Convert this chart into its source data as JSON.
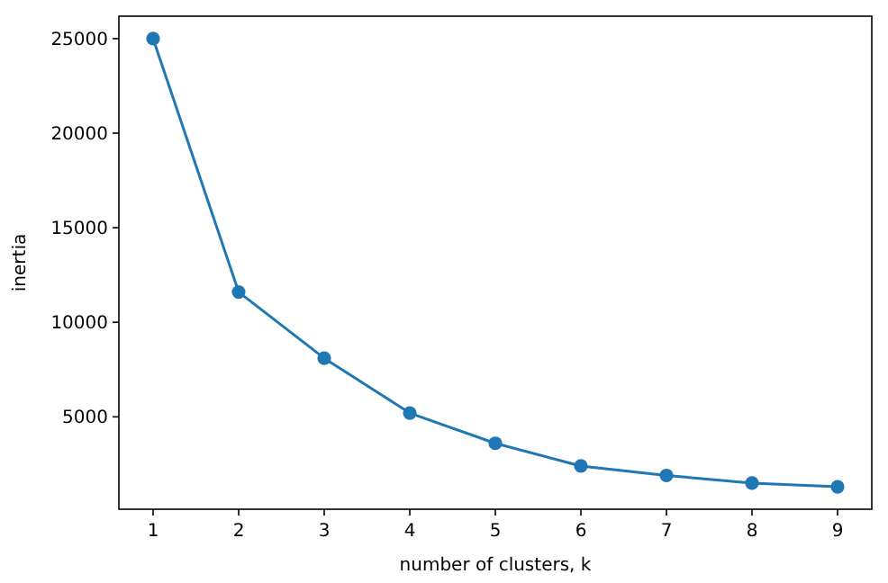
{
  "chart_data": {
    "type": "line",
    "xlabel": "number of clusters, k",
    "ylabel": "inertia",
    "x": [
      1,
      2,
      3,
      4,
      5,
      6,
      7,
      8,
      9
    ],
    "series": [
      {
        "color": "#1f77b4",
        "values": [
          25000,
          11600,
          8100,
          5200,
          3600,
          2400,
          1900,
          1500,
          1300
        ]
      }
    ],
    "xlim": [
      0.6,
      9.4
    ],
    "xticks": [
      1,
      2,
      3,
      4,
      5,
      6,
      7,
      8,
      9
    ],
    "ylim": [
      115,
      26185
    ],
    "yticks": [
      5000,
      10000,
      15000,
      20000,
      25000
    ],
    "marker": "circle",
    "line_style": "solid",
    "grid": false
  }
}
